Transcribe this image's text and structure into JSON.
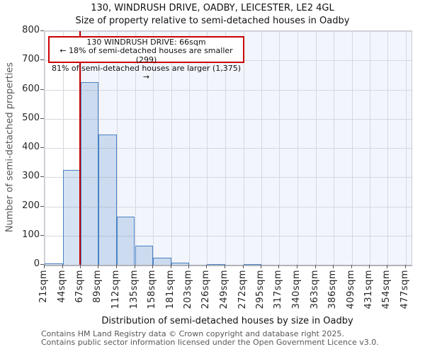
{
  "chart_data": {
    "type": "bar",
    "title": "130, WINDRUSH DRIVE, OADBY, LEICESTER, LE2 4GL",
    "subtitle": "Size of property relative to semi-detached houses in Oadby",
    "xlabel": "Distribution of semi-detached houses by size in Oadby",
    "ylabel": "Number of semi-detached properties",
    "bin_edges_sqm": [
      21,
      44,
      67,
      89,
      112,
      135,
      158,
      181,
      203,
      226,
      249,
      272,
      295,
      317,
      340,
      363,
      386,
      409,
      431,
      454,
      477
    ],
    "bin_labels": [
      "21sqm",
      "44sqm",
      "67sqm",
      "89sqm",
      "112sqm",
      "135sqm",
      "158sqm",
      "181sqm",
      "203sqm",
      "226sqm",
      "249sqm",
      "272sqm",
      "295sqm",
      "317sqm",
      "340sqm",
      "363sqm",
      "386sqm",
      "409sqm",
      "431sqm",
      "454sqm",
      "477sqm"
    ],
    "values": [
      6,
      325,
      625,
      445,
      165,
      65,
      25,
      8,
      0,
      2,
      0,
      2,
      0,
      0,
      0,
      0,
      0,
      0,
      0,
      0
    ],
    "ylim": [
      0,
      800
    ],
    "yticks": [
      0,
      100,
      200,
      300,
      400,
      500,
      600,
      700,
      800
    ],
    "grid": true,
    "marker": {
      "value_sqm": 66,
      "label": "130 WINDRUSH DRIVE: 66sqm"
    },
    "shaded_region": {
      "from_sqm": 66,
      "to_sqm": 477
    },
    "colors": {
      "bar_fill": "#d6e2f4",
      "bar_edge": "#4a82c4",
      "marker_line": "#c00000",
      "annotation_border": "#cc0000",
      "shade": "#f2f5fc",
      "grid": "#d7d7df"
    }
  },
  "annotation": {
    "line1": "130 WINDRUSH DRIVE: 66sqm",
    "line2": "← 18% of semi-detached houses are smaller (299)",
    "line3": "81% of semi-detached houses are larger (1,375) →"
  },
  "footer": {
    "line1": "Contains HM Land Registry data © Crown copyright and database right 2025.",
    "line2": "Contains public sector information licensed under the Open Government Licence v3.0."
  }
}
